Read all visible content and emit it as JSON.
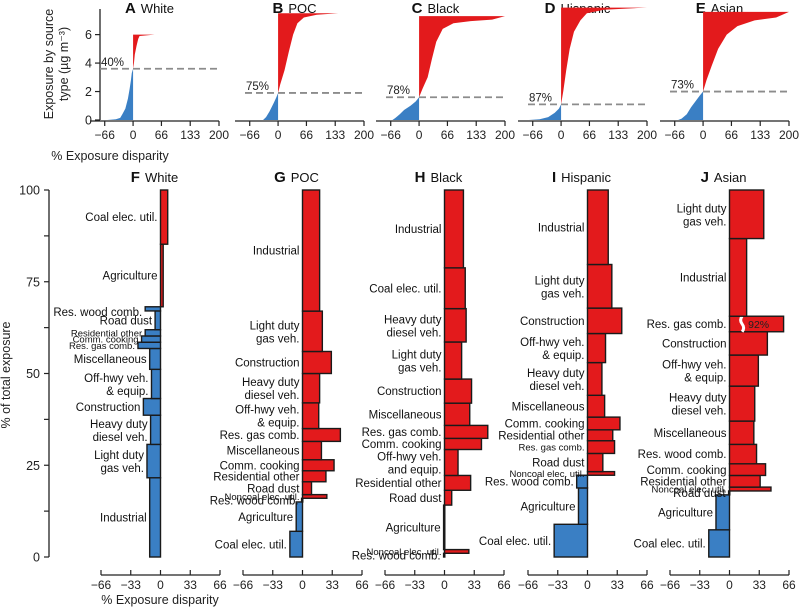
{
  "chart_data": {
    "top_panels": {
      "type": "area",
      "ylabel_line1": "Exposure by source",
      "ylabel_line2": "type (µg m⁻³)",
      "xlabel": "% Exposure disparity",
      "x_ticks": [
        "−66",
        "0",
        "66",
        "133",
        "200"
      ],
      "x_tick_values": [
        -66,
        0,
        66,
        133,
        200
      ],
      "xlim": [
        -77,
        200
      ],
      "y_ticks": [
        "0",
        "2",
        "4",
        "6"
      ],
      "y_tick_values": [
        0,
        2,
        4,
        6
      ],
      "ylim": [
        0,
        7.8
      ],
      "panels": [
        {
          "letter": "A",
          "group": "White",
          "threshold_label": "40%",
          "threshold_y": 3.6,
          "total": 6.0,
          "curve": [
            [
              -60,
              0
            ],
            [
              -40,
              0.05
            ],
            [
              -30,
              0.15
            ],
            [
              -25,
              0.4
            ],
            [
              -18,
              0.8
            ],
            [
              -12,
              1.5
            ],
            [
              -8,
              2.2
            ],
            [
              -5,
              2.8
            ],
            [
              -3,
              3.3
            ],
            [
              0,
              3.6
            ],
            [
              2,
              4.0
            ],
            [
              4,
              4.6
            ],
            [
              8,
              5.2
            ],
            [
              12,
              5.7
            ],
            [
              15,
              5.9
            ],
            [
              50,
              6.0
            ]
          ]
        },
        {
          "letter": "B",
          "group": "POC",
          "threshold_label": "75%",
          "threshold_y": 1.9,
          "total": 7.5,
          "curve": [
            [
              -35,
              0
            ],
            [
              -28,
              0.2
            ],
            [
              -20,
              0.6
            ],
            [
              -10,
              1.2
            ],
            [
              -4,
              1.6
            ],
            [
              0,
              1.9
            ],
            [
              5,
              2.5
            ],
            [
              15,
              3.5
            ],
            [
              25,
              4.8
            ],
            [
              35,
              6.0
            ],
            [
              45,
              6.8
            ],
            [
              60,
              7.2
            ],
            [
              90,
              7.4
            ],
            [
              140,
              7.5
            ]
          ]
        },
        {
          "letter": "C",
          "group": "Black",
          "threshold_label": "78%",
          "threshold_y": 1.6,
          "total": 7.3,
          "curve": [
            [
              -62,
              0
            ],
            [
              -55,
              0.15
            ],
            [
              -45,
              0.4
            ],
            [
              -35,
              0.7
            ],
            [
              -20,
              1.0
            ],
            [
              -8,
              1.3
            ],
            [
              0,
              1.6
            ],
            [
              8,
              2.2
            ],
            [
              20,
              3.0
            ],
            [
              30,
              4.3
            ],
            [
              40,
              5.5
            ],
            [
              55,
              6.4
            ],
            [
              80,
              6.8
            ],
            [
              120,
              6.95
            ],
            [
              170,
              7.05
            ],
            [
              200,
              7.3
            ]
          ]
        },
        {
          "letter": "D",
          "group": "Hispanic",
          "threshold_label": "87%",
          "threshold_y": 1.1,
          "total": 7.9,
          "curve": [
            [
              -75,
              0
            ],
            [
              -50,
              0.05
            ],
            [
              -30,
              0.2
            ],
            [
              -15,
              0.5
            ],
            [
              -5,
              0.8
            ],
            [
              0,
              1.1
            ],
            [
              5,
              2.0
            ],
            [
              12,
              3.5
            ],
            [
              20,
              5.0
            ],
            [
              30,
              6.2
            ],
            [
              45,
              7.0
            ],
            [
              60,
              7.5
            ],
            [
              100,
              7.75
            ],
            [
              200,
              7.9
            ]
          ]
        },
        {
          "letter": "E",
          "group": "Asian",
          "threshold_label": "73%",
          "threshold_y": 2.0,
          "total": 7.6,
          "curve": [
            [
              -58,
              0
            ],
            [
              -50,
              0.1
            ],
            [
              -38,
              0.4
            ],
            [
              -28,
              0.9
            ],
            [
              -18,
              1.3
            ],
            [
              -8,
              1.7
            ],
            [
              0,
              2.0
            ],
            [
              8,
              2.8
            ],
            [
              20,
              3.8
            ],
            [
              35,
              5.0
            ],
            [
              55,
              6.0
            ],
            [
              80,
              6.6
            ],
            [
              120,
              7.0
            ],
            [
              170,
              7.2
            ],
            [
              200,
              7.6
            ]
          ]
        }
      ]
    },
    "bottom_panels": {
      "type": "bar",
      "orientation": "horizontal",
      "ylabel": "% of total exposure",
      "xlabel": "% Exposure disparity",
      "x_ticks": [
        "−66",
        "−33",
        "0",
        "33",
        "66"
      ],
      "x_tick_values": [
        -66,
        -33,
        0,
        33,
        66
      ],
      "xlim": [
        -66,
        66
      ],
      "y_ticks": [
        "0",
        "25",
        "50",
        "75",
        "100"
      ],
      "y_tick_values": [
        0,
        25,
        50,
        75,
        100
      ],
      "ylim": [
        0,
        100
      ],
      "panels": [
        {
          "letter": "F",
          "group": "White",
          "bars": [
            {
              "label": [
                "Industrial"
              ],
              "share": 19,
              "disparity": -12
            },
            {
              "label": [
                "Light duty",
                "gas veh."
              ],
              "share": 8,
              "disparity": -15
            },
            {
              "label": [
                "Heavy duty",
                "diesel veh."
              ],
              "share": 7,
              "disparity": -11
            },
            {
              "label": [
                "Construction"
              ],
              "share": 4,
              "disparity": -19
            },
            {
              "label": [
                "Off-hwy veh.",
                "& equip."
              ],
              "share": 7,
              "disparity": -10
            },
            {
              "label": [
                "Miscellaneous"
              ],
              "share": 5,
              "disparity": -12
            },
            {
              "label": [
                "Res. gas comb."
              ],
              "share": 1.5,
              "disparity": -25,
              "small": true
            },
            {
              "label": [
                "Comm. cooking"
              ],
              "share": 1.5,
              "disparity": -21,
              "small": true
            },
            {
              "label": [
                "Residential other"
              ],
              "share": 1.5,
              "disparity": -17,
              "small": true
            },
            {
              "label": [
                "Road dust"
              ],
              "share": 4.5,
              "disparity": -6
            },
            {
              "label": [
                "Res. wood comb."
              ],
              "share": 1,
              "disparity": -17,
              "label_offset": 3
            },
            {
              "label": [
                "Agriculture"
              ],
              "share": 15,
              "disparity": 3
            },
            {
              "label": [
                "Coal elec. util."
              ],
              "share": 13,
              "disparity": 8
            }
          ]
        },
        {
          "letter": "G",
          "group": "POC",
          "bars": [
            {
              "label": [
                "Coal elec. util."
              ],
              "share": 7,
              "disparity": -14
            },
            {
              "label": [
                "Agriculture"
              ],
              "share": 8,
              "disparity": -7
            },
            {
              "label": [
                "Res. wood comb."
              ],
              "share": 1,
              "disparity": -1
            },
            {
              "label": [
                "Noncoal elec. util."
              ],
              "share": 1,
              "disparity": 27,
              "small": true
            },
            {
              "label": [
                "Road dust"
              ],
              "share": 3.5,
              "disparity": 10
            },
            {
              "label": [
                "Residential other"
              ],
              "share": 3,
              "disparity": 26
            },
            {
              "label": [
                "Comm. cooking"
              ],
              "share": 3,
              "disparity": 35
            },
            {
              "label": [
                "Miscellaneous"
              ],
              "share": 5,
              "disparity": 21
            },
            {
              "label": [
                "Res. gas comb."
              ],
              "share": 3.5,
              "disparity": 42
            },
            {
              "label": [
                "Off-hwy veh.",
                "& equip."
              ],
              "share": 7,
              "disparity": 18
            },
            {
              "label": [
                "Heavy duty",
                "diesel veh."
              ],
              "share": 8,
              "disparity": 19
            },
            {
              "label": [
                "Construction"
              ],
              "share": 6,
              "disparity": 32
            },
            {
              "label": [
                "Light duty",
                "gas veh."
              ],
              "share": 11,
              "disparity": 22
            },
            {
              "label": [
                "Industrial"
              ],
              "share": 33,
              "disparity": 19
            }
          ]
        },
        {
          "letter": "H",
          "group": "Black",
          "bars": [
            {
              "label": [
                "Res. wood comb."
              ],
              "share": 1,
              "disparity": -1
            },
            {
              "label": [
                "Noncoal elec. util."
              ],
              "share": 1,
              "disparity": 27,
              "small": true
            },
            {
              "label": [
                "Agriculture"
              ],
              "share": 12,
              "disparity": -1
            },
            {
              "label": [
                "Road dust"
              ],
              "share": 4,
              "disparity": 8
            },
            {
              "label": [
                "Residential other"
              ],
              "share": 4,
              "disparity": 29
            },
            {
              "label": [
                "Off-hwy veh.",
                "and equip."
              ],
              "share": 7,
              "disparity": 15
            },
            {
              "label": [
                "Comm. cooking"
              ],
              "share": 3,
              "disparity": 41
            },
            {
              "label": [
                "Res. gas comb."
              ],
              "share": 3.5,
              "disparity": 48
            },
            {
              "label": [
                "Miscellaneous"
              ],
              "share": 6,
              "disparity": 28
            },
            {
              "label": [
                "Construction"
              ],
              "share": 6.5,
              "disparity": 30
            },
            {
              "label": [
                "Light duty",
                "gas veh."
              ],
              "share": 10,
              "disparity": 19
            },
            {
              "label": [
                "Heavy duty",
                "diesel veh."
              ],
              "share": 9,
              "disparity": 24
            },
            {
              "label": [
                "Coal elec. util."
              ],
              "share": 11,
              "disparity": 23
            },
            {
              "label": [
                "Industrial"
              ],
              "share": 21,
              "disparity": 21
            }
          ]
        },
        {
          "letter": "I",
          "group": "Hispanic",
          "bars": [
            {
              "label": [
                "Coal elec. util."
              ],
              "share": 9,
              "disparity": -37
            },
            {
              "label": [
                "Agriculture"
              ],
              "share": 10,
              "disparity": -10
            },
            {
              "label": [
                "Res. wood comb."
              ],
              "share": 3.5,
              "disparity": -12
            },
            {
              "label": [
                "Noncoal elec. util."
              ],
              "share": 1,
              "disparity": 30,
              "small": true
            },
            {
              "label": [
                "Road dust"
              ],
              "share": 5,
              "disparity": 17
            },
            {
              "label": [
                "Res. gas comb."
              ],
              "share": 3.5,
              "disparity": 30,
              "small": true
            },
            {
              "label": [
                "Residential other"
              ],
              "share": 3,
              "disparity": 28
            },
            {
              "label": [
                "Comm. cooking"
              ],
              "share": 3.5,
              "disparity": 36
            },
            {
              "label": [
                "Miscellaneous"
              ],
              "share": 6,
              "disparity": 19
            },
            {
              "label": [
                "Heavy duty",
                "diesel veh."
              ],
              "share": 9,
              "disparity": 16
            },
            {
              "label": [
                "Off-hwy veh.",
                "& equip."
              ],
              "share": 8,
              "disparity": 20
            },
            {
              "label": [
                "Construction"
              ],
              "share": 7,
              "disparity": 38
            },
            {
              "label": [
                "Light duty",
                "gas veh."
              ],
              "share": 12,
              "disparity": 27
            },
            {
              "label": [
                "Industrial"
              ],
              "share": 20.5,
              "disparity": 23
            }
          ]
        },
        {
          "letter": "J",
          "group": "Asian",
          "bars": [
            {
              "label": [
                "Coal elec. util."
              ],
              "share": 7,
              "disparity": -23
            },
            {
              "label": [
                "Agriculture"
              ],
              "share": 9,
              "disparity": -15
            },
            {
              "label": [
                "Road dust"
              ],
              "share": 1,
              "disparity": -1
            },
            {
              "label": [
                "Noncoal elec. util."
              ],
              "share": 1,
              "disparity": 46,
              "small": true
            },
            {
              "label": [
                "Residential other"
              ],
              "share": 3,
              "disparity": 34
            },
            {
              "label": [
                "Comm. cooking"
              ],
              "share": 3,
              "disparity": 40
            },
            {
              "label": [
                "Res. wood comb."
              ],
              "share": 5,
              "disparity": 30
            },
            {
              "label": [
                "Miscellaneous"
              ],
              "share": 6,
              "disparity": 27
            },
            {
              "label": [
                "Heavy duty",
                "diesel veh."
              ],
              "share": 9,
              "disparity": 28
            },
            {
              "label": [
                "Off-hwy veh.",
                "& equip."
              ],
              "share": 8,
              "disparity": 32
            },
            {
              "label": [
                "Construction"
              ],
              "share": 6,
              "disparity": 42
            },
            {
              "label": [
                "Res. gas comb."
              ],
              "share": 4,
              "disparity": 60,
              "break_label": "92%"
            },
            {
              "label": [
                "Industrial"
              ],
              "share": 20,
              "disparity": 19
            },
            {
              "label": [
                "Light duty",
                "gas veh."
              ],
              "share": 12.5,
              "disparity": 38
            }
          ]
        }
      ]
    },
    "colors": {
      "positive": "#e31a1c",
      "negative": "#3a7fc4",
      "threshold_line": "#8c8c8c",
      "axis": "#222222",
      "bar_outline": "#1a1a1a"
    }
  }
}
